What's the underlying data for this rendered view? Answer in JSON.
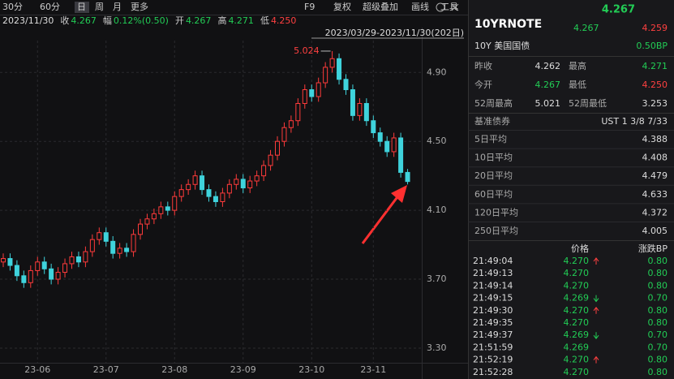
{
  "toolbar": {
    "periods": [
      "30分",
      "60分",
      "日",
      "周",
      "月",
      "更多"
    ],
    "active": 2,
    "tools": [
      "F9",
      "复权",
      "超级叠加",
      "画线",
      "工具"
    ]
  },
  "info": {
    "date": "2023/11/30",
    "close_label": "收",
    "close": "4.267",
    "change_label": "幅",
    "change": "0.12%(0.50)",
    "open_label": "开",
    "open": "4.267",
    "high_label": "高",
    "high": "4.271",
    "low_label": "低",
    "low": "4.250"
  },
  "chart_data": {
    "type": "candlestick",
    "range_label": "2023/03/29-2023/11/30(202日)",
    "categories": [
      null,
      null,
      null,
      null,
      null,
      "23-06",
      null,
      null,
      null,
      null,
      null,
      null,
      null,
      null,
      null,
      "23-07",
      null,
      null,
      null,
      null,
      null,
      null,
      null,
      null,
      null,
      "23-08",
      null,
      null,
      null,
      null,
      null,
      null,
      null,
      null,
      null,
      "23-09",
      null,
      null,
      null,
      null,
      null,
      null,
      null,
      null,
      null,
      "23-10",
      null,
      null,
      null,
      null,
      null,
      null,
      null,
      null,
      "23-11",
      null,
      null,
      null,
      null,
      null
    ],
    "open": [
      3.8,
      3.82,
      3.78,
      3.72,
      3.68,
      3.75,
      3.8,
      3.76,
      3.7,
      3.74,
      3.79,
      3.83,
      3.8,
      3.86,
      3.93,
      3.97,
      3.92,
      3.85,
      3.88,
      3.86,
      3.96,
      4.02,
      4.05,
      4.08,
      4.12,
      4.1,
      4.18,
      4.22,
      4.25,
      4.3,
      4.22,
      4.18,
      4.15,
      4.2,
      4.25,
      4.28,
      4.23,
      4.27,
      4.3,
      4.36,
      4.42,
      4.5,
      4.58,
      4.62,
      4.72,
      4.8,
      4.76,
      4.84,
      4.93,
      4.98,
      4.86,
      4.8,
      4.65,
      4.72,
      4.62,
      4.55,
      4.5,
      4.44,
      4.52,
      4.32
    ],
    "high": [
      3.85,
      3.85,
      3.81,
      3.75,
      3.78,
      3.83,
      3.83,
      3.79,
      3.77,
      3.82,
      3.86,
      3.86,
      3.89,
      3.96,
      4.0,
      4.0,
      3.95,
      3.91,
      3.91,
      3.99,
      4.05,
      4.08,
      4.11,
      4.15,
      4.15,
      4.21,
      4.25,
      4.28,
      4.33,
      4.33,
      4.25,
      4.21,
      4.23,
      4.28,
      4.31,
      4.31,
      4.3,
      4.33,
      4.39,
      4.45,
      4.53,
      4.61,
      4.65,
      4.75,
      4.83,
      4.83,
      4.87,
      4.96,
      5.024,
      5.01,
      4.89,
      4.83,
      4.75,
      4.75,
      4.65,
      4.58,
      4.53,
      4.55,
      4.55,
      4.34
    ],
    "low": [
      3.77,
      3.75,
      3.69,
      3.65,
      3.65,
      3.72,
      3.73,
      3.67,
      3.67,
      3.71,
      3.76,
      3.77,
      3.77,
      3.83,
      3.9,
      3.89,
      3.82,
      3.82,
      3.83,
      3.83,
      3.93,
      3.99,
      4.02,
      4.05,
      4.07,
      4.07,
      4.15,
      4.19,
      4.22,
      4.19,
      4.15,
      4.12,
      4.12,
      4.17,
      4.22,
      4.2,
      4.2,
      4.24,
      4.27,
      4.33,
      4.39,
      4.47,
      4.55,
      4.59,
      4.69,
      4.73,
      4.73,
      4.81,
      4.9,
      4.83,
      4.77,
      4.62,
      4.62,
      4.59,
      4.52,
      4.47,
      4.41,
      4.41,
      4.29,
      4.25
    ],
    "close": [
      3.82,
      3.78,
      3.72,
      3.68,
      3.75,
      3.8,
      3.76,
      3.7,
      3.74,
      3.79,
      3.83,
      3.8,
      3.86,
      3.93,
      3.97,
      3.92,
      3.85,
      3.88,
      3.86,
      3.96,
      4.02,
      4.05,
      4.08,
      4.12,
      4.1,
      4.18,
      4.22,
      4.25,
      4.3,
      4.22,
      4.18,
      4.15,
      4.2,
      4.25,
      4.28,
      4.23,
      4.27,
      4.3,
      4.36,
      4.42,
      4.5,
      4.58,
      4.62,
      4.72,
      4.8,
      4.76,
      4.84,
      4.93,
      4.98,
      4.86,
      4.8,
      4.65,
      4.72,
      4.62,
      4.55,
      4.5,
      4.44,
      4.52,
      4.32,
      4.267
    ],
    "up_color": "#ff3b3b",
    "down_color": "#3fd3dc",
    "grid": true,
    "ylim": [
      3.215,
      5.085
    ],
    "yticks": [
      {
        "value": 3.3,
        "label": "3.30"
      },
      {
        "value": 3.7,
        "label": "3.70"
      },
      {
        "value": 4.1,
        "label": "4.10"
      },
      {
        "value": 4.5,
        "label": "4.50"
      },
      {
        "value": 4.9,
        "label": "4.90"
      }
    ],
    "annotations": [
      {
        "text": "5.024",
        "index": 48
      }
    ]
  },
  "panel": {
    "symbol": "10YRNOTE",
    "last": "4.267",
    "bid": "4.267",
    "ask": "4.259",
    "name": "10Y 美国国债",
    "change": "0.50BP",
    "stats": [
      [
        "昨收",
        "4.262",
        "最高",
        "4.271"
      ],
      [
        "今开",
        "4.267",
        "最低",
        "4.250"
      ],
      [
        "52周最高",
        "5.021",
        "52周最低",
        "3.253"
      ]
    ],
    "benchmark": [
      "基准债券",
      "UST 1 3/8 7/33"
    ],
    "averages": [
      [
        "5日平均",
        "4.388"
      ],
      [
        "10日平均",
        "4.408"
      ],
      [
        "20日平均",
        "4.479"
      ],
      [
        "60日平均",
        "4.633"
      ],
      [
        "120日平均",
        "4.372"
      ],
      [
        "250日平均",
        "4.005"
      ]
    ],
    "trade_header": [
      "价格",
      "涨跌BP"
    ],
    "trades": [
      [
        "21:49:04",
        "4.270",
        "up",
        "0.80"
      ],
      [
        "21:49:13",
        "4.270",
        null,
        "0.80"
      ],
      [
        "21:49:14",
        "4.270",
        null,
        "0.80"
      ],
      [
        "21:49:15",
        "4.269",
        "down",
        "0.70"
      ],
      [
        "21:49:30",
        "4.270",
        "up",
        "0.80"
      ],
      [
        "21:49:35",
        "4.270",
        null,
        "0.80"
      ],
      [
        "21:49:37",
        "4.269",
        "down",
        "0.70"
      ],
      [
        "21:51:59",
        "4.269",
        null,
        "0.70"
      ],
      [
        "21:52:19",
        "4.270",
        "up",
        "0.80"
      ],
      [
        "21:52:28",
        "4.270",
        null,
        "0.80"
      ]
    ]
  }
}
